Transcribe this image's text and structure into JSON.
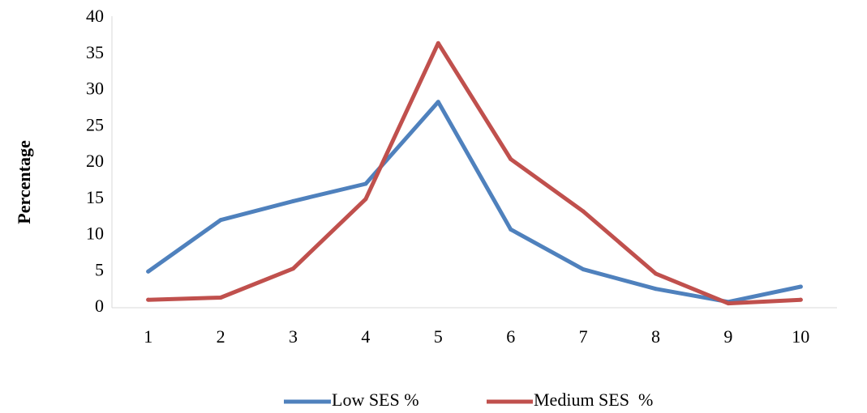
{
  "chart_data": {
    "type": "line",
    "title": "",
    "xlabel": "",
    "ylabel": "Percentage",
    "x": [
      "1",
      "2",
      "3",
      "4",
      "5",
      "6",
      "7",
      "8",
      "9",
      "10"
    ],
    "ylim": [
      0,
      40
    ],
    "yticks": [
      "0",
      "5",
      "10",
      "15",
      "20",
      "25",
      "30",
      "35",
      "40"
    ],
    "grid": false,
    "legend_position": "bottom",
    "series": [
      {
        "name": "Low SES %",
        "color": "#4F81BD",
        "values": [
          5.0,
          12.1,
          14.7,
          17.1,
          28.4,
          10.8,
          5.3,
          2.6,
          0.8,
          2.9
        ]
      },
      {
        "name": "Medium SES  %",
        "color": "#C0504D",
        "values": [
          1.1,
          1.4,
          5.4,
          15.0,
          36.5,
          20.5,
          13.3,
          4.7,
          0.6,
          1.1
        ]
      }
    ]
  }
}
